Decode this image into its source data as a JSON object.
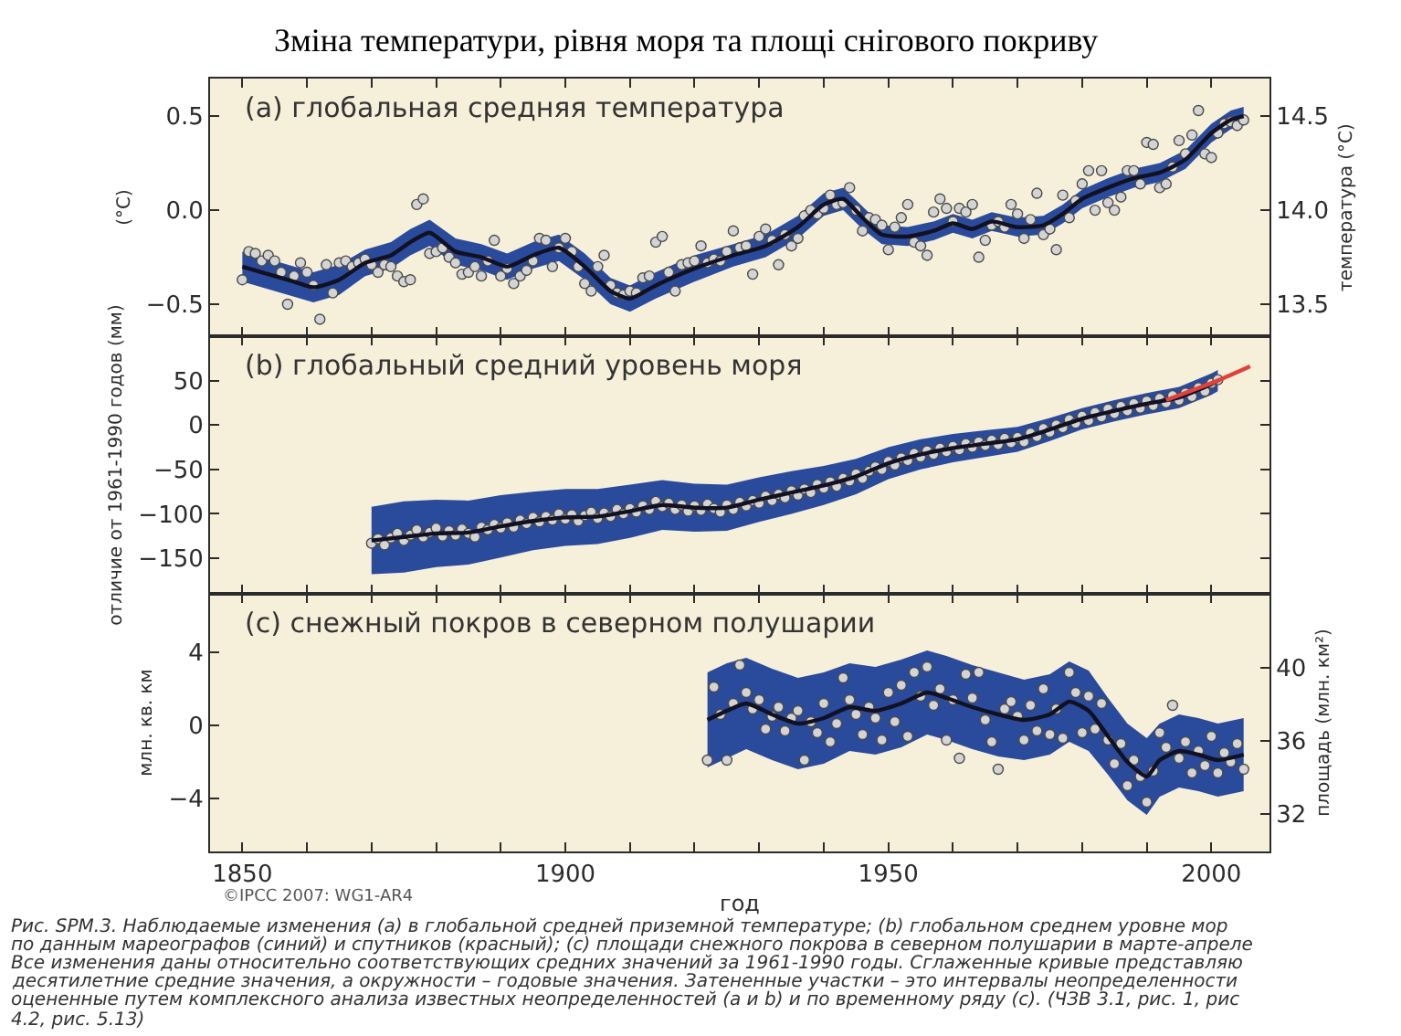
{
  "chart_data": [
    {
      "type": "line",
      "title": "(a) глобальная средняя температура",
      "ylabel": "(°C)",
      "y2label": "температура (°C)",
      "annotations": [
        "Зміна температури, рівня моря та площі снігового покриву"
      ],
      "xlim": [
        1845,
        2009
      ],
      "xticks": [
        1850,
        {
          "value": 1860,
          "label": null
        },
        {
          "value": 1870,
          "label": null
        },
        {
          "value": 1880,
          "label": null
        },
        {
          "value": 1890,
          "label": null
        },
        1900,
        {
          "value": 1910,
          "label": null
        },
        {
          "value": 1920,
          "label": null
        },
        {
          "value": 1930,
          "label": null
        },
        {
          "value": 1940,
          "label": null
        },
        1950,
        {
          "value": 1960,
          "label": null
        },
        {
          "value": 1970,
          "label": null
        },
        {
          "value": 1980,
          "label": null
        },
        {
          "value": 1990,
          "label": null
        },
        2000
      ],
      "ylim": [
        -0.67,
        0.7
      ],
      "yticks": [
        0.5,
        {
          "value": 0,
          "label": "0.0"
        },
        {
          "value": -0.5,
          "label": "−0.5"
        }
      ],
      "y2lim": [
        13.33,
        14.7
      ],
      "y2ticks": [
        14.5,
        {
          "value": 14,
          "label": "14.0"
        },
        13.5
      ],
      "tick_labels": "y",
      "series": [
        {
          "color": "#111122",
          "x": [
            1850,
            1854,
            1858,
            1861,
            1865,
            1869,
            1873,
            1876,
            1879,
            1883,
            1887,
            1891,
            1895,
            1899,
            1903,
            1907,
            1910,
            1914,
            1920,
            1926,
            1931,
            1936,
            1940,
            1943,
            1946,
            1949,
            1953,
            1957,
            1960,
            1963,
            1966,
            1970,
            1974,
            1977,
            1980,
            1984,
            1988,
            1992,
            1996,
            2000,
            2003,
            2005
          ],
          "values": [
            -0.3,
            -0.34,
            -0.38,
            -0.41,
            -0.37,
            -0.28,
            -0.24,
            -0.17,
            -0.12,
            -0.22,
            -0.25,
            -0.3,
            -0.24,
            -0.2,
            -0.3,
            -0.43,
            -0.47,
            -0.4,
            -0.31,
            -0.24,
            -0.19,
            -0.09,
            0.03,
            0.06,
            -0.04,
            -0.13,
            -0.14,
            -0.11,
            -0.07,
            -0.1,
            -0.06,
            -0.09,
            -0.08,
            -0.02,
            0.06,
            0.12,
            0.17,
            0.2,
            0.27,
            0.41,
            0.48,
            0.5
          ],
          "lower": [
            -0.38,
            -0.42,
            -0.46,
            -0.49,
            -0.45,
            -0.35,
            -0.31,
            -0.24,
            -0.19,
            -0.29,
            -0.32,
            -0.37,
            -0.31,
            -0.27,
            -0.37,
            -0.5,
            -0.54,
            -0.47,
            -0.38,
            -0.3,
            -0.25,
            -0.15,
            -0.03,
            0.0,
            -0.1,
            -0.18,
            -0.19,
            -0.16,
            -0.12,
            -0.15,
            -0.11,
            -0.14,
            -0.13,
            -0.07,
            0.01,
            0.07,
            0.12,
            0.15,
            0.22,
            0.36,
            0.43,
            0.45
          ],
          "upper": [
            -0.22,
            -0.26,
            -0.3,
            -0.33,
            -0.29,
            -0.21,
            -0.17,
            -0.1,
            -0.05,
            -0.15,
            -0.18,
            -0.23,
            -0.17,
            -0.13,
            -0.23,
            -0.36,
            -0.4,
            -0.33,
            -0.24,
            -0.18,
            -0.13,
            -0.03,
            0.09,
            0.12,
            0.02,
            -0.08,
            -0.09,
            -0.06,
            -0.02,
            -0.05,
            -0.01,
            -0.04,
            -0.03,
            0.03,
            0.11,
            0.17,
            0.22,
            0.25,
            0.32,
            0.46,
            0.53,
            0.55
          ]
        },
        {
          "type": "scatter",
          "marker": "circle",
          "color": "#d4d4d4",
          "x": [
            1850,
            1851,
            1852,
            1853,
            1854,
            1855,
            1856,
            1857,
            1858,
            1859,
            1860,
            1861,
            1862,
            1863,
            1864,
            1865,
            1866,
            1867,
            1868,
            1869,
            1870,
            1871,
            1872,
            1873,
            1874,
            1875,
            1876,
            1877,
            1878,
            1879,
            1880,
            1881,
            1882,
            1883,
            1884,
            1885,
            1886,
            1887,
            1888,
            1889,
            1890,
            1891,
            1892,
            1893,
            1894,
            1895,
            1896,
            1897,
            1898,
            1899,
            1900,
            1901,
            1902,
            1903,
            1904,
            1905,
            1906,
            1907,
            1908,
            1909,
            1910,
            1911,
            1912,
            1913,
            1914,
            1915,
            1916,
            1917,
            1918,
            1919,
            1920,
            1921,
            1922,
            1923,
            1924,
            1925,
            1926,
            1927,
            1928,
            1929,
            1930,
            1931,
            1932,
            1933,
            1934,
            1935,
            1936,
            1937,
            1938,
            1939,
            1940,
            1941,
            1942,
            1943,
            1944,
            1945,
            1946,
            1947,
            1948,
            1949,
            1950,
            1951,
            1952,
            1953,
            1954,
            1955,
            1956,
            1957,
            1958,
            1959,
            1960,
            1961,
            1962,
            1963,
            1964,
            1965,
            1966,
            1967,
            1968,
            1969,
            1970,
            1971,
            1972,
            1973,
            1974,
            1975,
            1976,
            1977,
            1978,
            1979,
            1980,
            1981,
            1982,
            1983,
            1984,
            1985,
            1986,
            1987,
            1988,
            1989,
            1990,
            1991,
            1992,
            1993,
            1994,
            1995,
            1996,
            1997,
            1998,
            1999,
            2000,
            2001,
            2002,
            2003,
            2004,
            2005
          ],
          "values": [
            -0.37,
            -0.22,
            -0.23,
            -0.27,
            -0.24,
            -0.27,
            -0.33,
            -0.5,
            -0.35,
            -0.28,
            -0.33,
            -0.4,
            -0.58,
            -0.29,
            -0.44,
            -0.28,
            -0.27,
            -0.3,
            -0.28,
            -0.26,
            -0.29,
            -0.33,
            -0.29,
            -0.3,
            -0.35,
            -0.38,
            -0.37,
            0.03,
            0.06,
            -0.23,
            -0.22,
            -0.2,
            -0.25,
            -0.28,
            -0.34,
            -0.33,
            -0.3,
            -0.35,
            -0.27,
            -0.16,
            -0.35,
            -0.31,
            -0.39,
            -0.35,
            -0.32,
            -0.27,
            -0.15,
            -0.16,
            -0.3,
            -0.2,
            -0.15,
            -0.22,
            -0.3,
            -0.39,
            -0.43,
            -0.3,
            -0.24,
            -0.4,
            -0.44,
            -0.45,
            -0.43,
            -0.44,
            -0.36,
            -0.35,
            -0.17,
            -0.14,
            -0.33,
            -0.43,
            -0.29,
            -0.28,
            -0.27,
            -0.19,
            -0.28,
            -0.26,
            -0.27,
            -0.22,
            -0.11,
            -0.2,
            -0.19,
            -0.34,
            -0.14,
            -0.1,
            -0.16,
            -0.29,
            -0.13,
            -0.19,
            -0.15,
            -0.03,
            0.0,
            -0.02,
            0.01,
            0.08,
            0.03,
            0.04,
            0.12,
            0.0,
            -0.11,
            -0.04,
            -0.05,
            -0.08,
            -0.21,
            -0.09,
            -0.04,
            0.03,
            -0.17,
            -0.19,
            -0.24,
            -0.01,
            0.06,
            0.01,
            -0.06,
            0.01,
            -0.01,
            0.03,
            -0.25,
            -0.16,
            -0.08,
            -0.06,
            -0.09,
            0.03,
            -0.02,
            -0.15,
            -0.05,
            0.09,
            -0.13,
            -0.1,
            -0.21,
            0.08,
            -0.04,
            0.05,
            0.14,
            0.21,
            0.0,
            0.21,
            0.04,
            0.0,
            0.07,
            0.21,
            0.21,
            0.14,
            0.36,
            0.35,
            0.12,
            0.14,
            0.23,
            0.37,
            0.3,
            0.4,
            0.53,
            0.3,
            0.28,
            0.41,
            0.46,
            0.47,
            0.45,
            0.48
          ]
        }
      ]
    },
    {
      "type": "line",
      "title": "(b) глобальный средний уровень моря",
      "ylabel": "отличие от 1961-1990 годов (мм)",
      "xlim": [
        1845,
        2009
      ],
      "xticks": [
        1850,
        {
          "value": 1860,
          "label": null
        },
        {
          "value": 1870,
          "label": null
        },
        {
          "value": 1880,
          "label": null
        },
        {
          "value": 1890,
          "label": null
        },
        1900,
        {
          "value": 1910,
          "label": null
        },
        {
          "value": 1920,
          "label": null
        },
        {
          "value": 1930,
          "label": null
        },
        {
          "value": 1940,
          "label": null
        },
        1950,
        {
          "value": 1960,
          "label": null
        },
        {
          "value": 1970,
          "label": null
        },
        {
          "value": 1980,
          "label": null
        },
        {
          "value": 1990,
          "label": null
        },
        2000
      ],
      "ylim": [
        -190,
        100
      ],
      "yticks": [
        50,
        0,
        {
          "value": -50,
          "label": "−50"
        },
        {
          "value": -100,
          "label": "−100"
        },
        {
          "value": -150,
          "label": "−150"
        }
      ],
      "tick_labels": "y",
      "series": [
        {
          "color": "#111122",
          "x": [
            1870,
            1875,
            1880,
            1885,
            1890,
            1895,
            1900,
            1905,
            1910,
            1915,
            1920,
            1925,
            1930,
            1935,
            1940,
            1945,
            1950,
            1955,
            1960,
            1965,
            1970,
            1975,
            1980,
            1985,
            1990,
            1995,
            2000,
            2001
          ],
          "values": [
            -130,
            -126,
            -122,
            -121,
            -114,
            -108,
            -104,
            -103,
            -97,
            -90,
            -93,
            -93,
            -84,
            -76,
            -68,
            -58,
            -43,
            -33,
            -26,
            -21,
            -16,
            -5,
            7,
            16,
            24,
            31,
            46,
            50
          ],
          "lower": [
            -168,
            -166,
            -160,
            -157,
            -149,
            -141,
            -136,
            -134,
            -127,
            -118,
            -120,
            -119,
            -109,
            -100,
            -90,
            -78,
            -61,
            -50,
            -42,
            -36,
            -30,
            -18,
            -5,
            4,
            12,
            19,
            34,
            38
          ],
          "upper": [
            -92,
            -86,
            -84,
            -85,
            -79,
            -75,
            -72,
            -72,
            -67,
            -62,
            -66,
            -67,
            -59,
            -52,
            -46,
            -38,
            -25,
            -16,
            -10,
            -6,
            -2,
            8,
            19,
            28,
            36,
            43,
            58,
            62
          ]
        },
        {
          "type": "scatter",
          "marker": "circle",
          "color": "#d4d4d4",
          "x": [
            1870,
            1871,
            1872,
            1873,
            1874,
            1875,
            1876,
            1877,
            1878,
            1879,
            1880,
            1881,
            1882,
            1883,
            1884,
            1885,
            1886,
            1887,
            1888,
            1889,
            1890,
            1891,
            1892,
            1893,
            1894,
            1895,
            1896,
            1897,
            1898,
            1899,
            1900,
            1901,
            1902,
            1903,
            1904,
            1905,
            1906,
            1907,
            1908,
            1909,
            1910,
            1911,
            1912,
            1913,
            1914,
            1915,
            1916,
            1917,
            1918,
            1919,
            1920,
            1921,
            1922,
            1923,
            1924,
            1925,
            1926,
            1927,
            1928,
            1929,
            1930,
            1931,
            1932,
            1933,
            1934,
            1935,
            1936,
            1937,
            1938,
            1939,
            1940,
            1941,
            1942,
            1943,
            1944,
            1945,
            1946,
            1947,
            1948,
            1949,
            1950,
            1951,
            1952,
            1953,
            1954,
            1955,
            1956,
            1957,
            1958,
            1959,
            1960,
            1961,
            1962,
            1963,
            1964,
            1965,
            1966,
            1967,
            1968,
            1969,
            1970,
            1971,
            1972,
            1973,
            1974,
            1975,
            1976,
            1977,
            1978,
            1979,
            1980,
            1981,
            1982,
            1983,
            1984,
            1985,
            1986,
            1987,
            1988,
            1989,
            1990,
            1991,
            1992,
            1993,
            1994,
            1995,
            1996,
            1997,
            1998,
            1999,
            2000,
            2001
          ],
          "values": [
            -133,
            -128,
            -135,
            -127,
            -122,
            -130,
            -124,
            -118,
            -126,
            -121,
            -116,
            -125,
            -119,
            -124,
            -117,
            -122,
            -126,
            -115,
            -118,
            -112,
            -116,
            -110,
            -115,
            -107,
            -111,
            -104,
            -109,
            -103,
            -107,
            -100,
            -106,
            -101,
            -108,
            -102,
            -98,
            -105,
            -99,
            -103,
            -95,
            -100,
            -94,
            -98,
            -91,
            -95,
            -86,
            -92,
            -88,
            -95,
            -90,
            -97,
            -91,
            -96,
            -89,
            -94,
            -98,
            -90,
            -95,
            -87,
            -91,
            -85,
            -88,
            -80,
            -85,
            -78,
            -82,
            -74,
            -79,
            -72,
            -76,
            -67,
            -71,
            -64,
            -69,
            -60,
            -63,
            -55,
            -60,
            -52,
            -47,
            -50,
            -41,
            -45,
            -37,
            -40,
            -32,
            -36,
            -29,
            -33,
            -26,
            -30,
            -24,
            -28,
            -21,
            -25,
            -19,
            -23,
            -17,
            -22,
            -15,
            -20,
            -14,
            -19,
            -9,
            -13,
            -4,
            -8,
            0,
            -3,
            6,
            2,
            10,
            5,
            14,
            9,
            18,
            13,
            21,
            16,
            24,
            19,
            27,
            22,
            30,
            25,
            33,
            28,
            36,
            32,
            42,
            38,
            47,
            51
          ]
        },
        {
          "color": "#e0413a",
          "x": [
            1993,
            1997,
            2001,
            2006
          ],
          "values": [
            28,
            39,
            50,
            66
          ]
        }
      ]
    },
    {
      "type": "line",
      "title": "(c) снежный покров в северном полушарии",
      "xlabel": "год",
      "ylabel": "млн. кв. км",
      "y2label": "площадь (млн. км²)",
      "annotations": [
        "©IPCC 2007: WG1-AR4",
        "Рис. SPM.3. Наблюдаемые изменения (a) в глобальной средней приземной температуре; (b) глобальном среднем уровне мор\nпо данным мареографов (синий) и спутников (красный); (c) площади снежного покрова в северном полушарии в марте-апреле\nВсе изменения даны относительно соответствующих средних значений за 1961-1990 годы. Сглаженные кривые представляю\nдесятилетние средние значения, а окружности – годовые значения. Затененные участки – это интервалы неопределенности\nоцененные путем комплексного анализа известных неопределенностей (a и b) и по временному ряду (c). (ЧЗВ 3.1, рис. 1, рис\n4.2, рис. 5.13)"
      ],
      "xlim": [
        1845,
        2009
      ],
      "xticks": [
        1850,
        {
          "value": 1860,
          "label": null
        },
        {
          "value": 1870,
          "label": null
        },
        {
          "value": 1880,
          "label": null
        },
        {
          "value": 1890,
          "label": null
        },
        1900,
        {
          "value": 1910,
          "label": null
        },
        {
          "value": 1920,
          "label": null
        },
        {
          "value": 1930,
          "label": null
        },
        {
          "value": 1940,
          "label": null
        },
        1950,
        {
          "value": 1960,
          "label": null
        },
        {
          "value": 1970,
          "label": null
        },
        {
          "value": 1980,
          "label": null
        },
        {
          "value": 1990,
          "label": null
        },
        2000
      ],
      "ylim": [
        -6.9,
        7.2
      ],
      "yticks": [
        4,
        0,
        {
          "value": -4,
          "label": "−4"
        }
      ],
      "y2lim": [
        29.95,
        44.05
      ],
      "y2ticks": [
        40,
        36,
        32
      ],
      "series": [
        {
          "color": "#111122",
          "x": [
            1922,
            1925,
            1928,
            1932,
            1936,
            1940,
            1944,
            1948,
            1952,
            1956,
            1959,
            1963,
            1967,
            1971,
            1975,
            1978,
            1981,
            1984,
            1987,
            1990,
            1992,
            1995,
            1998,
            2001,
            2005
          ],
          "values": [
            0.3,
            0.8,
            1.2,
            0.6,
            0.1,
            0.4,
            1.0,
            0.8,
            1.2,
            1.8,
            1.5,
            1.0,
            0.6,
            0.3,
            0.6,
            1.3,
            0.8,
            -0.6,
            -2.0,
            -2.8,
            -1.9,
            -1.4,
            -1.6,
            -1.9,
            -1.6
          ],
          "lower": [
            -2.3,
            -1.8,
            -1.3,
            -1.9,
            -2.4,
            -2.1,
            -1.4,
            -1.6,
            -1.2,
            -0.5,
            -0.8,
            -1.3,
            -1.7,
            -1.9,
            -1.6,
            -0.9,
            -1.4,
            -2.7,
            -4.1,
            -4.9,
            -3.9,
            -3.4,
            -3.6,
            -3.9,
            -3.6
          ],
          "upper": [
            2.9,
            3.4,
            3.7,
            3.1,
            2.6,
            2.9,
            3.4,
            3.2,
            3.6,
            4.1,
            3.8,
            3.3,
            2.9,
            2.5,
            2.8,
            3.5,
            3.0,
            1.5,
            0.1,
            -0.7,
            0.1,
            0.6,
            0.4,
            0.1,
            0.4
          ]
        },
        {
          "type": "scatter",
          "marker": "circle",
          "color": "#d4d4d4",
          "x": [
            1922,
            1923,
            1924,
            1925,
            1926,
            1927,
            1928,
            1929,
            1930,
            1931,
            1932,
            1933,
            1934,
            1935,
            1936,
            1937,
            1938,
            1939,
            1940,
            1941,
            1942,
            1943,
            1944,
            1945,
            1946,
            1947,
            1948,
            1949,
            1950,
            1951,
            1952,
            1953,
            1954,
            1955,
            1956,
            1957,
            1958,
            1959,
            1960,
            1961,
            1962,
            1963,
            1964,
            1965,
            1966,
            1967,
            1968,
            1969,
            1970,
            1971,
            1972,
            1973,
            1974,
            1975,
            1976,
            1977,
            1978,
            1979,
            1980,
            1981,
            1982,
            1983,
            1984,
            1985,
            1986,
            1987,
            1988,
            1989,
            1990,
            1991,
            1992,
            1993,
            1994,
            1995,
            1996,
            1997,
            1998,
            1999,
            2000,
            2001,
            2002,
            2003,
            2004,
            2005
          ],
          "values": [
            -1.9,
            2.1,
            0.6,
            -1.9,
            1.2,
            3.3,
            1.8,
            0.9,
            1.4,
            -0.2,
            0.5,
            1.0,
            -0.3,
            0.4,
            0.8,
            -1.9,
            0.2,
            -0.4,
            1.2,
            -0.9,
            0.1,
            2.6,
            1.4,
            0.6,
            -0.5,
            1.0,
            0.4,
            -0.8,
            1.8,
            0.2,
            2.2,
            -0.6,
            2.9,
            1.6,
            3.2,
            1.1,
            2.0,
            -0.8,
            1.4,
            -1.8,
            2.8,
            1.5,
            2.9,
            0.3,
            -0.9,
            -2.4,
            0.9,
            1.3,
            0.5,
            -0.8,
            1.1,
            -0.3,
            2.0,
            -0.5,
            0.9,
            -0.7,
            2.9,
            1.8,
            -0.4,
            1.6,
            -0.2,
            1.2,
            -0.8,
            -2.1,
            -1.0,
            -3.3,
            -1.9,
            -2.8,
            -4.2,
            -2.5,
            -0.4,
            -1.2,
            1.1,
            -1.8,
            -0.9,
            -2.6,
            -1.4,
            -2.2,
            -0.6,
            -2.6,
            -1.5,
            -2.0,
            -1.0,
            -2.4
          ]
        }
      ]
    }
  ]
}
